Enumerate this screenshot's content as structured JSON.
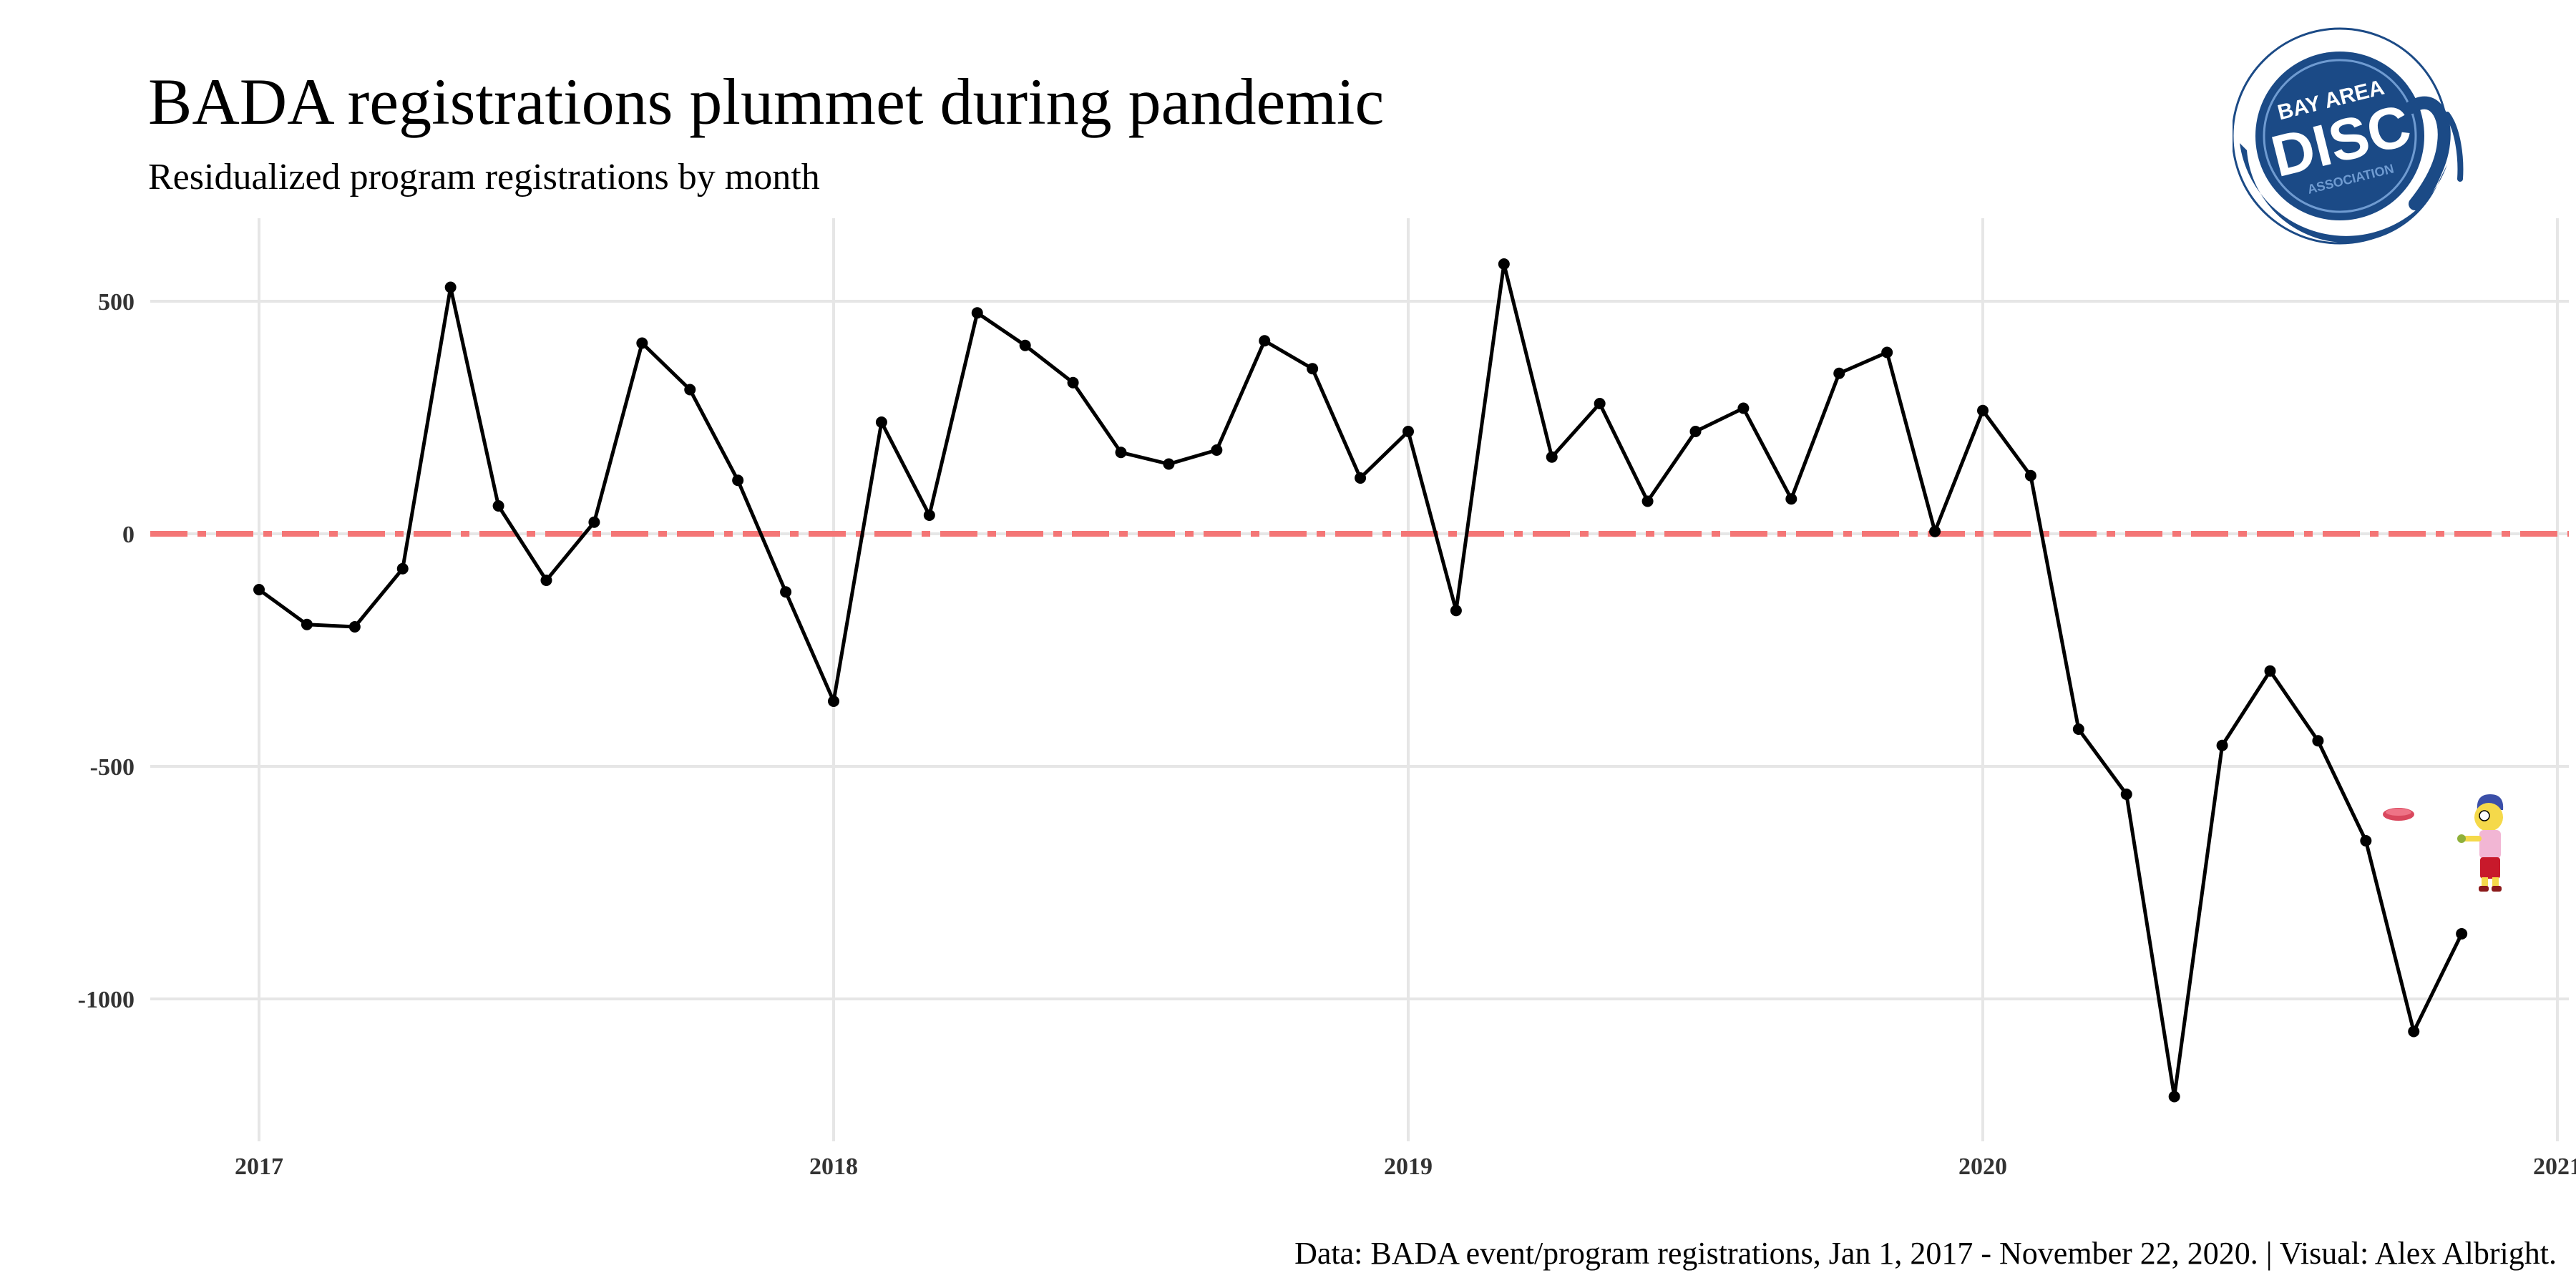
{
  "chart_data": {
    "type": "line",
    "title": "BADA registrations plummet during pandemic",
    "subtitle": "Residualized program registrations by month",
    "caption": "Data: BADA event/program registrations, Jan 1, 2017 - November 22, 2020. | Visual: Alex Albright.",
    "xlabel": "",
    "ylabel": "",
    "x_ticks": [
      "2017",
      "2018",
      "2019",
      "2020",
      "2021"
    ],
    "y_ticks": [
      500,
      0,
      -500,
      -1000
    ],
    "y_tick_labels": [
      "500",
      "0",
      "-500",
      "-1000"
    ],
    "xlim": [
      "2016-11",
      "2021-01"
    ],
    "ylim": [
      -1290,
      650
    ],
    "reference_line": {
      "y": 0,
      "style": "dot-dash",
      "color": "#f47676"
    },
    "grid": true,
    "line_color": "#000000",
    "series": [
      {
        "x": [
          "2017-01",
          "2017-02",
          "2017-03",
          "2017-04",
          "2017-05",
          "2017-06",
          "2017-07",
          "2017-08",
          "2017-09",
          "2017-10",
          "2017-11",
          "2017-12",
          "2018-01",
          "2018-02",
          "2018-03",
          "2018-04",
          "2018-05",
          "2018-06",
          "2018-07",
          "2018-08",
          "2018-09",
          "2018-10",
          "2018-11",
          "2018-12",
          "2019-01",
          "2019-02",
          "2019-03",
          "2019-04",
          "2019-05",
          "2019-06",
          "2019-07",
          "2019-08",
          "2019-09",
          "2019-10",
          "2019-11",
          "2019-12",
          "2020-01",
          "2020-02",
          "2020-03",
          "2020-04",
          "2020-05",
          "2020-06",
          "2020-07",
          "2020-08",
          "2020-09",
          "2020-10",
          "2020-11"
        ],
        "values": [
          -120,
          -195,
          -200,
          -75,
          530,
          60,
          -100,
          25,
          410,
          310,
          115,
          -125,
          -360,
          240,
          40,
          475,
          405,
          325,
          175,
          150,
          180,
          415,
          355,
          120,
          220,
          -165,
          580,
          165,
          280,
          70,
          220,
          270,
          75,
          345,
          390,
          5,
          265,
          125,
          -420,
          -560,
          -1210,
          -455,
          -295,
          -445,
          -660,
          -1070,
          -860
        ]
      }
    ]
  },
  "logo": {
    "line1": "BAY AREA",
    "line2": "DISC",
    "line3": "ASSOCIATION",
    "color": "#1b4a86"
  }
}
